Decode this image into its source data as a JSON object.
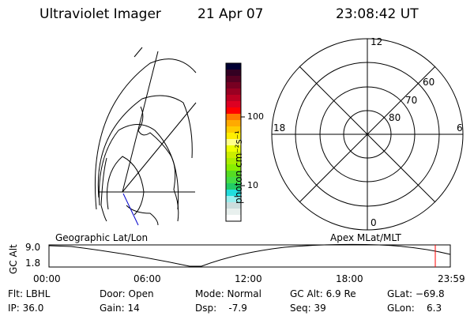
{
  "header": {
    "instrument": "Ultraviolet Imager",
    "date": "21 Apr 07",
    "time": "23:08:42 UT"
  },
  "colorbar": {
    "label": "photon cm⁻²s⁻¹",
    "ticks": [
      "100",
      "10"
    ],
    "colors": [
      "#000033",
      "#330022",
      "#550022",
      "#770022",
      "#990022",
      "#bb0022",
      "#dd0022",
      "#ff0000",
      "#ff7700",
      "#ffaa00",
      "#ffcc00",
      "#ffee00",
      "#ffff88",
      "#eeff00",
      "#ccee00",
      "#aaee00",
      "#88ee00",
      "#55dd22",
      "#44dd44",
      "#22cc66",
      "#22dddd",
      "#99eeee",
      "#ccdddd",
      "#e8f0ee",
      "#ffffff"
    ]
  },
  "geo_map": {
    "label": "Geographic Lat/Lon",
    "track_color": "#0000cc"
  },
  "polar_map": {
    "label": "Apex MLat/MLT",
    "mlt_labels": {
      "top": "12",
      "right": "6",
      "bottom": "0",
      "left": "18"
    },
    "lat_labels": [
      "60",
      "70",
      "80"
    ]
  },
  "altitude_plot": {
    "ylabel": "GC Alt",
    "yticks": [
      "9.0",
      "1.8"
    ],
    "xticks": [
      "00:00",
      "06:00",
      "12:00",
      "18:00",
      "23:59"
    ],
    "marker_color": "#ff0000",
    "current_time": "23:08"
  },
  "info": {
    "filter": "Flt: LBHL",
    "ip": "IP: 36.0",
    "door": "Door: Open",
    "gain": "Gain: 14",
    "mode": "Mode: Normal",
    "dsp": "Dsp:    -7.9",
    "gc_alt": "GC Alt: 6.9 Re",
    "seq": "Seq: 39",
    "glat": "GLat: −69.8",
    "glon": "GLon:    6.3"
  }
}
